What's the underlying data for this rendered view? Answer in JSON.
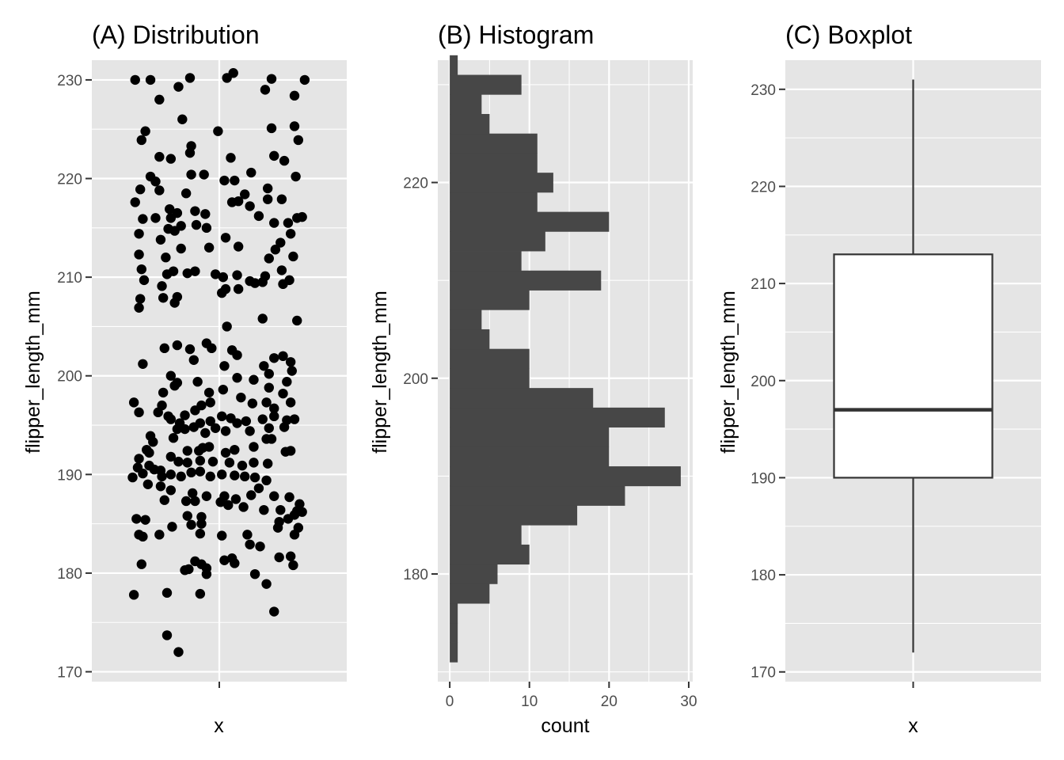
{
  "chart_data": [
    {
      "type": "scatter",
      "title": "(A) Distribution",
      "xlabel": "x",
      "ylabel": "flipper_length_mm",
      "ylim": [
        169,
        232
      ],
      "yticks": [
        170,
        180,
        190,
        200,
        210,
        220,
        230
      ],
      "xticks": [
        ""
      ],
      "jitter": "horizontal jitter around a single x category",
      "points": [
        [
          -0.66,
          230
        ],
        [
          -0.54,
          230
        ],
        [
          -0.23,
          230.2
        ],
        [
          0.11,
          230.7
        ],
        [
          0.41,
          230.1
        ],
        [
          0.67,
          230
        ],
        [
          0.06,
          230.2
        ],
        [
          -0.32,
          229.3
        ],
        [
          -0.47,
          228
        ],
        [
          0.36,
          229
        ],
        [
          0.59,
          228.4
        ],
        [
          -0.29,
          226
        ],
        [
          0.59,
          225.3
        ],
        [
          0.41,
          225.1
        ],
        [
          -0.58,
          224.8
        ],
        [
          -0.01,
          224.8
        ],
        [
          -0.61,
          223.9
        ],
        [
          0.62,
          223.9
        ],
        [
          -0.22,
          223.3
        ],
        [
          -0.23,
          222.6
        ],
        [
          0.43,
          222.3
        ],
        [
          -0.47,
          222.2
        ],
        [
          -0.38,
          222
        ],
        [
          0.09,
          222.1
        ],
        [
          0.51,
          221.8
        ],
        [
          -0.22,
          220.4
        ],
        [
          0.25,
          220.6
        ],
        [
          -0.54,
          220.2
        ],
        [
          0.12,
          219.8
        ],
        [
          0.04,
          219.8
        ],
        [
          -0.12,
          220.4
        ],
        [
          0.6,
          220.2
        ],
        [
          -0.5,
          219.7
        ],
        [
          -0.47,
          218.8
        ],
        [
          -0.62,
          218.9
        ],
        [
          0.38,
          219
        ],
        [
          -0.26,
          218.5
        ],
        [
          0.2,
          218.4
        ],
        [
          -0.66,
          217.6
        ],
        [
          0.15,
          217.7
        ],
        [
          0.38,
          217.9
        ],
        [
          0.49,
          217.9
        ],
        [
          0.1,
          217.6
        ],
        [
          0.24,
          217.2
        ],
        [
          -0.39,
          216.9
        ],
        [
          -0.33,
          216.5
        ],
        [
          -0.19,
          216.7
        ],
        [
          -0.11,
          216.4
        ],
        [
          -0.38,
          216
        ],
        [
          -0.6,
          215.9
        ],
        [
          -0.5,
          216
        ],
        [
          0.61,
          216
        ],
        [
          0.65,
          216.1
        ],
        [
          0.31,
          216.2
        ],
        [
          0.43,
          215.5
        ],
        [
          0.54,
          215.5
        ],
        [
          -0.3,
          215.2
        ],
        [
          -0.18,
          215.3
        ],
        [
          -0.1,
          215
        ],
        [
          -0.4,
          214.9
        ],
        [
          -0.35,
          214.7
        ],
        [
          -0.63,
          214.4
        ],
        [
          0.56,
          214.4
        ],
        [
          0.05,
          214
        ],
        [
          -0.46,
          213.8
        ],
        [
          0.48,
          213.5
        ],
        [
          -0.08,
          213
        ],
        [
          0.15,
          213.1
        ],
        [
          -0.3,
          212.9
        ],
        [
          0.44,
          212.8
        ],
        [
          -0.63,
          212.3
        ],
        [
          0.58,
          212.1
        ],
        [
          0.39,
          211.9
        ],
        [
          -0.42,
          212
        ],
        [
          -0.61,
          210.8
        ],
        [
          -0.36,
          210.6
        ],
        [
          -0.41,
          210.3
        ],
        [
          0.49,
          210.7
        ],
        [
          0.36,
          210.1
        ],
        [
          -0.25,
          210.4
        ],
        [
          -0.19,
          210.6
        ],
        [
          0.03,
          210
        ],
        [
          -0.03,
          210.3
        ],
        [
          0.14,
          210.2
        ],
        [
          0.24,
          209.6
        ],
        [
          0.34,
          209.5
        ],
        [
          -0.59,
          209.7
        ],
        [
          -0.45,
          209.1
        ],
        [
          0.55,
          209.7
        ],
        [
          0.28,
          209.4
        ],
        [
          0.5,
          209.3
        ],
        [
          0.15,
          208.8
        ],
        [
          -0.44,
          207.9
        ],
        [
          -0.33,
          208
        ],
        [
          -0.35,
          207.4
        ],
        [
          -0.62,
          207.8
        ],
        [
          -0.63,
          206.9
        ],
        [
          0.02,
          208.4
        ],
        [
          0.05,
          208.8
        ],
        [
          0.34,
          205.8
        ],
        [
          0.61,
          205.6
        ],
        [
          0.06,
          205
        ],
        [
          0.04,
          201
        ],
        [
          -0.33,
          203.1
        ],
        [
          -0.43,
          202.8
        ],
        [
          -0.23,
          202.7
        ],
        [
          -0.2,
          201.6
        ],
        [
          -0.1,
          203.3
        ],
        [
          -0.06,
          202.8
        ],
        [
          0.1,
          202.6
        ],
        [
          0.14,
          202.1
        ],
        [
          0.5,
          202
        ],
        [
          0.43,
          201.8
        ],
        [
          0.35,
          201
        ],
        [
          0.56,
          201.4
        ],
        [
          0.57,
          200.5
        ],
        [
          0.39,
          200.2
        ],
        [
          -0.6,
          201.2
        ],
        [
          -0.38,
          200
        ],
        [
          0.03,
          198.6
        ],
        [
          0.14,
          199.8
        ],
        [
          0.27,
          199.6
        ],
        [
          0.39,
          198.8
        ],
        [
          0.53,
          199.4
        ],
        [
          0.5,
          198.2
        ],
        [
          -0.33,
          199.3
        ],
        [
          -0.35,
          199
        ],
        [
          -0.17,
          199.4
        ],
        [
          -0.44,
          198.3
        ],
        [
          -0.08,
          198.3
        ],
        [
          -0.67,
          197.3
        ],
        [
          -0.63,
          196.3
        ],
        [
          0.26,
          197.2
        ],
        [
          0.17,
          197.8
        ],
        [
          0.37,
          197.3
        ],
        [
          0.56,
          197.3
        ],
        [
          0.43,
          196.7
        ],
        [
          -0.45,
          197
        ],
        [
          -0.14,
          197
        ],
        [
          -0.07,
          197.3
        ],
        [
          -0.48,
          196.3
        ],
        [
          -0.4,
          195.9
        ],
        [
          -0.38,
          195.6
        ],
        [
          -0.27,
          196
        ],
        [
          -0.19,
          196.5
        ],
        [
          -0.31,
          195.2
        ],
        [
          -0.15,
          195.2
        ],
        [
          -0.07,
          195.4
        ],
        [
          0.02,
          195.9
        ],
        [
          0.09,
          195.7
        ],
        [
          0.14,
          195.2
        ],
        [
          0.21,
          195.4
        ],
        [
          0.34,
          195.6
        ],
        [
          0.43,
          195.9
        ],
        [
          0.53,
          195.5
        ],
        [
          0.59,
          195.6
        ],
        [
          0.51,
          194.8
        ],
        [
          0.39,
          194.7
        ],
        [
          0.24,
          194.4
        ],
        [
          -0.03,
          194.7
        ],
        [
          -0.33,
          194.6
        ],
        [
          -0.27,
          194.6
        ],
        [
          -0.2,
          194.8
        ],
        [
          -0.11,
          194.2
        ],
        [
          0.05,
          194.4
        ],
        [
          -0.54,
          193.9
        ],
        [
          -0.36,
          193.7
        ],
        [
          -0.52,
          193.3
        ],
        [
          -0.57,
          192.5
        ],
        [
          0.37,
          193.6
        ],
        [
          0.41,
          193.6
        ],
        [
          0.27,
          192.8
        ],
        [
          0.52,
          192.3
        ],
        [
          0.56,
          192.4
        ],
        [
          -0.08,
          192.8
        ],
        [
          -0.13,
          192.7
        ],
        [
          -0.25,
          192.4
        ],
        [
          -0.16,
          192.4
        ],
        [
          0.05,
          192.2
        ],
        [
          0.12,
          192.5
        ],
        [
          -0.55,
          192.2
        ],
        [
          -0.63,
          191.6
        ],
        [
          -0.64,
          190.7
        ],
        [
          -0.55,
          190.9
        ],
        [
          -0.46,
          190.4
        ],
        [
          -0.38,
          191.8
        ],
        [
          -0.32,
          191.3
        ],
        [
          -0.25,
          191.2
        ],
        [
          -0.15,
          191.4
        ],
        [
          -0.05,
          191.3
        ],
        [
          0.08,
          191.2
        ],
        [
          0.18,
          190.9
        ],
        [
          0.27,
          191.2
        ],
        [
          0.38,
          191.1
        ],
        [
          -0.68,
          189.7
        ],
        [
          -0.6,
          190.1
        ],
        [
          -0.51,
          190.5
        ],
        [
          -0.45,
          189.8
        ],
        [
          -0.38,
          190
        ],
        [
          -0.3,
          189.8
        ],
        [
          -0.22,
          190.2
        ],
        [
          -0.15,
          190.3
        ],
        [
          -0.07,
          189.8
        ],
        [
          0.02,
          190
        ],
        [
          0.12,
          189.9
        ],
        [
          0.2,
          189.8
        ],
        [
          0.28,
          189.7
        ],
        [
          0.37,
          189.4
        ],
        [
          -0.56,
          189
        ],
        [
          -0.46,
          188.8
        ],
        [
          -0.38,
          188.4
        ],
        [
          -0.21,
          188.1
        ],
        [
          -0.1,
          187.8
        ],
        [
          0.04,
          187.8
        ],
        [
          0.13,
          187.5
        ],
        [
          0.25,
          187.9
        ],
        [
          0.31,
          188.6
        ],
        [
          0.43,
          187.8
        ],
        [
          0.55,
          187.7
        ],
        [
          0.63,
          187
        ],
        [
          -0.43,
          187.4
        ],
        [
          -0.26,
          187.3
        ],
        [
          -0.19,
          187.3
        ],
        [
          0.01,
          187.2
        ],
        [
          0.07,
          186.9
        ],
        [
          0.19,
          186.7
        ],
        [
          0.35,
          186.4
        ],
        [
          0.48,
          186.4
        ],
        [
          0.61,
          186.3
        ],
        [
          0.65,
          186.2
        ],
        [
          0.59,
          185.9
        ],
        [
          0.54,
          185.5
        ],
        [
          0.47,
          185.2
        ],
        [
          -0.14,
          185.7
        ],
        [
          -0.25,
          185.8
        ],
        [
          -0.65,
          185.5
        ],
        [
          -0.58,
          185.4
        ],
        [
          -0.14,
          185
        ],
        [
          -0.22,
          184.9
        ],
        [
          -0.37,
          184.7
        ],
        [
          0.46,
          184.6
        ],
        [
          0.62,
          184.6
        ],
        [
          0.59,
          183.9
        ],
        [
          -0.63,
          183.9
        ],
        [
          -0.6,
          183.7
        ],
        [
          -0.47,
          183.9
        ],
        [
          -0.15,
          184
        ],
        [
          0.02,
          183.8
        ],
        [
          0.22,
          183.9
        ],
        [
          0.24,
          182.9
        ],
        [
          0.32,
          182.7
        ],
        [
          0.47,
          181.6
        ],
        [
          0.56,
          181.7
        ],
        [
          0.1,
          181.5
        ],
        [
          0.12,
          181
        ],
        [
          0.04,
          181.3
        ],
        [
          -0.61,
          180.9
        ],
        [
          -0.19,
          181.2
        ],
        [
          -0.14,
          180.9
        ],
        [
          -0.24,
          180.4
        ],
        [
          -0.27,
          180.3
        ],
        [
          -0.1,
          180.5
        ],
        [
          -0.1,
          179.9
        ],
        [
          0.28,
          179.9
        ],
        [
          0.37,
          178.9
        ],
        [
          0.58,
          180.8
        ],
        [
          -0.67,
          177.8
        ],
        [
          -0.41,
          178
        ],
        [
          -0.15,
          177.9
        ],
        [
          0.43,
          176.1
        ],
        [
          -0.41,
          173.7
        ],
        [
          -0.32,
          172
        ]
      ]
    },
    {
      "type": "bar",
      "orientation": "horizontal",
      "title": "(B) Histogram",
      "xlabel": "count",
      "ylabel": "flipper_length_mm",
      "xlim": [
        -1.5,
        30.5
      ],
      "ylim": [
        169,
        232.5
      ],
      "xticks": [
        0,
        10,
        20,
        30
      ],
      "yticks": [
        180,
        200,
        220
      ],
      "bin_width": 2,
      "bin_centers": [
        172,
        174,
        176,
        178,
        180,
        182,
        184,
        186,
        188,
        190,
        192,
        194,
        196,
        198,
        200,
        202,
        204,
        206,
        208,
        210,
        212,
        214,
        216,
        218,
        220,
        222,
        224,
        226,
        228,
        230,
        232
      ],
      "counts": [
        1,
        1,
        1,
        5,
        6,
        10,
        9,
        16,
        22,
        29,
        20,
        20,
        27,
        18,
        10,
        10,
        5,
        4,
        10,
        19,
        9,
        12,
        20,
        11,
        13,
        11,
        11,
        5,
        4,
        9,
        1
      ]
    },
    {
      "type": "boxplot",
      "title": "(C) Boxplot",
      "xlabel": "x",
      "ylabel": "flipper_length_mm",
      "ylim": [
        169,
        233
      ],
      "yticks": [
        170,
        180,
        190,
        200,
        210,
        220,
        230
      ],
      "xticks": [
        ""
      ],
      "min": 172,
      "q1": 190,
      "median": 197,
      "q3": 213,
      "max": 231
    }
  ]
}
